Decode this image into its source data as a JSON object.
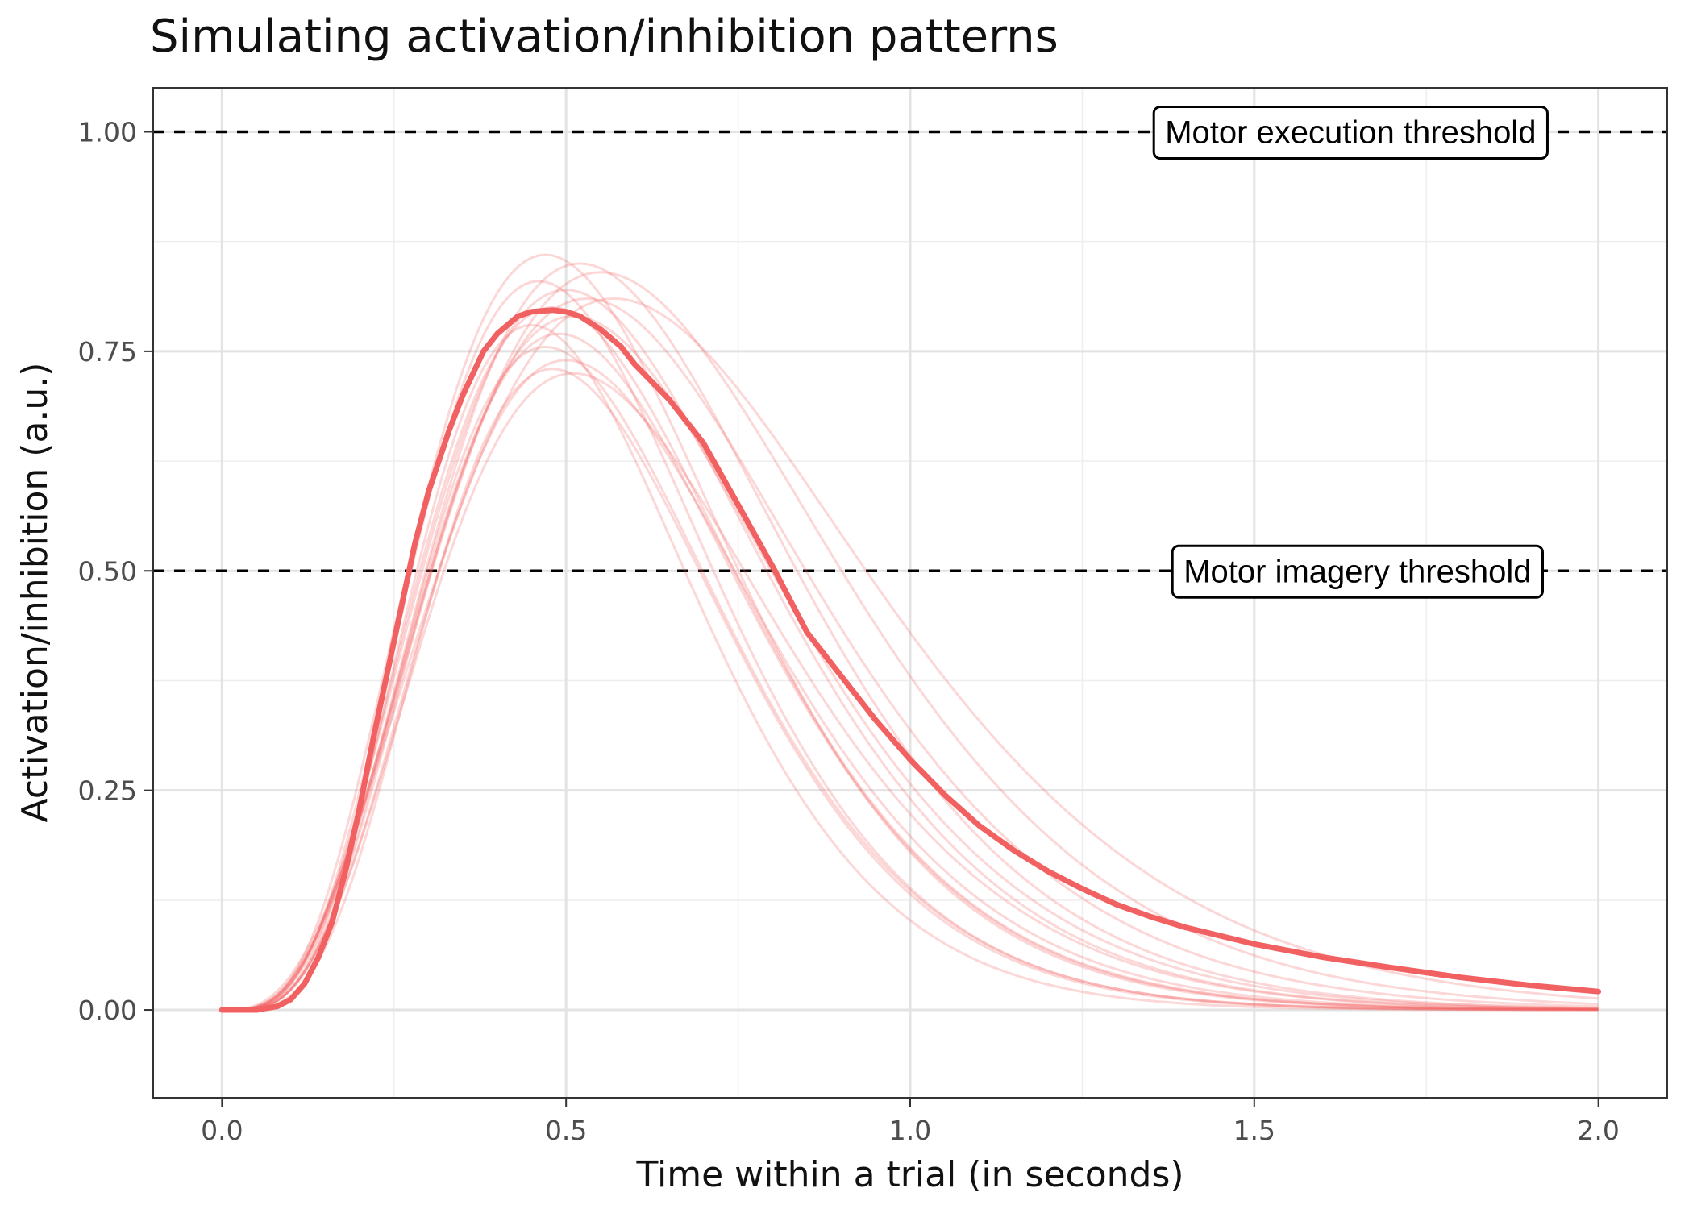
{
  "chart_data": {
    "type": "line",
    "title": "Simulating activation/inhibition patterns",
    "xlabel": "Time within a trial (in seconds)",
    "ylabel": "Activation/inhibition (a.u.)",
    "xlim": [
      -0.1,
      2.1
    ],
    "ylim": [
      -0.1,
      1.05
    ],
    "x_ticks": [
      0.0,
      0.5,
      1.0,
      1.5,
      2.0
    ],
    "x_tick_labels": [
      "0.0",
      "0.5",
      "1.0",
      "1.5",
      "2.0"
    ],
    "y_ticks": [
      0.0,
      0.25,
      0.5,
      0.75,
      1.0
    ],
    "y_tick_labels": [
      "0.00",
      "0.25",
      "0.50",
      "0.75",
      "1.00"
    ],
    "grid": true,
    "colors": {
      "mean_line": "#f26161",
      "trial_lines": "#f26161",
      "thresholds": "#000000"
    },
    "thresholds": [
      {
        "y": 1.0,
        "label": "Motor execution threshold",
        "label_x": 1.64
      },
      {
        "y": 0.5,
        "label": "Motor imagery threshold",
        "label_x": 1.65
      }
    ],
    "trial_curves": [
      {
        "peak_time": 0.47,
        "peak": 0.86,
        "shape": 4.2
      },
      {
        "peak_time": 0.46,
        "peak": 0.83,
        "shape": 4.5
      },
      {
        "peak_time": 0.52,
        "peak": 0.85,
        "shape": 4.0
      },
      {
        "peak_time": 0.55,
        "peak": 0.84,
        "shape": 3.6
      },
      {
        "peak_time": 0.5,
        "peak": 0.82,
        "shape": 4.0
      },
      {
        "peak_time": 0.53,
        "peak": 0.81,
        "shape": 3.7
      },
      {
        "peak_time": 0.57,
        "peak": 0.81,
        "shape": 3.3
      },
      {
        "peak_time": 0.48,
        "peak": 0.8,
        "shape": 4.2
      },
      {
        "peak_time": 0.51,
        "peak": 0.79,
        "shape": 3.9
      },
      {
        "peak_time": 0.45,
        "peak": 0.78,
        "shape": 4.8
      },
      {
        "peak_time": 0.49,
        "peak": 0.77,
        "shape": 4.4
      },
      {
        "peak_time": 0.47,
        "peak": 0.755,
        "shape": 4.6
      },
      {
        "peak_time": 0.5,
        "peak": 0.74,
        "shape": 4.3
      },
      {
        "peak_time": 0.48,
        "peak": 0.73,
        "shape": 4.9
      },
      {
        "peak_time": 0.51,
        "peak": 0.725,
        "shape": 4.1
      }
    ],
    "mean_curve": {
      "x": [
        0.0,
        0.05,
        0.08,
        0.1,
        0.12,
        0.14,
        0.16,
        0.18,
        0.2,
        0.22,
        0.25,
        0.28,
        0.3,
        0.33,
        0.35,
        0.38,
        0.4,
        0.43,
        0.45,
        0.48,
        0.5,
        0.52,
        0.55,
        0.58,
        0.6,
        0.65,
        0.7,
        0.75,
        0.8,
        0.85,
        0.9,
        0.95,
        1.0,
        1.05,
        1.1,
        1.15,
        1.2,
        1.25,
        1.3,
        1.35,
        1.4,
        1.5,
        1.6,
        1.7,
        1.8,
        1.9,
        2.0
      ],
      "y": [
        0.0,
        0.0,
        0.004,
        0.012,
        0.03,
        0.06,
        0.1,
        0.16,
        0.23,
        0.31,
        0.42,
        0.53,
        0.59,
        0.66,
        0.7,
        0.75,
        0.77,
        0.79,
        0.795,
        0.797,
        0.795,
        0.79,
        0.775,
        0.755,
        0.735,
        0.695,
        0.645,
        0.575,
        0.505,
        0.43,
        0.38,
        0.33,
        0.285,
        0.245,
        0.21,
        0.182,
        0.158,
        0.138,
        0.12,
        0.106,
        0.094,
        0.075,
        0.06,
        0.048,
        0.037,
        0.028,
        0.021
      ]
    }
  }
}
